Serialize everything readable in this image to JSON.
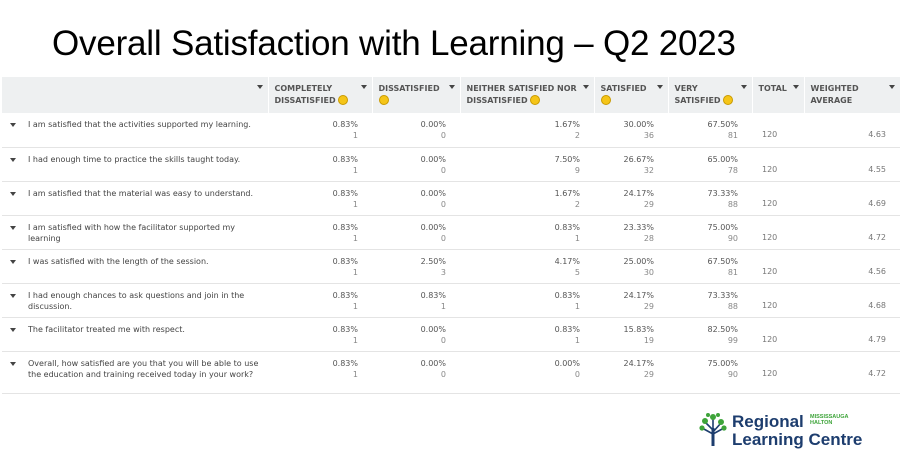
{
  "title": "Overall Satisfaction with Learning – Q2 2023",
  "headers": {
    "completely_dissatisfied": "COMPLETELY DISSATISFIED",
    "dissatisfied": "DISSATISFIED",
    "neither": "NEITHER SATISFIED NOR DISSATISFIED",
    "satisfied": "SATISFIED",
    "very_satisfied": "VERY SATISFIED",
    "total": "TOTAL",
    "weighted_average": "WEIGHTED AVERAGE"
  },
  "rows": [
    {
      "question": "I am satisfied that the activities supported my learning.",
      "c1": "0.83%",
      "n1": "1",
      "c2": "0.00%",
      "n2": "0",
      "c3": "1.67%",
      "n3": "2",
      "c4": "30.00%",
      "n4": "36",
      "c5": "67.50%",
      "n5": "81",
      "total": "120",
      "wavg": "4.63"
    },
    {
      "question": "I had enough time to practice the skills taught today.",
      "c1": "0.83%",
      "n1": "1",
      "c2": "0.00%",
      "n2": "0",
      "c3": "7.50%",
      "n3": "9",
      "c4": "26.67%",
      "n4": "32",
      "c5": "65.00%",
      "n5": "78",
      "total": "120",
      "wavg": "4.55"
    },
    {
      "question": "I am satisfied that the material was easy to understand.",
      "c1": "0.83%",
      "n1": "1",
      "c2": "0.00%",
      "n2": "0",
      "c3": "1.67%",
      "n3": "2",
      "c4": "24.17%",
      "n4": "29",
      "c5": "73.33%",
      "n5": "88",
      "total": "120",
      "wavg": "4.69"
    },
    {
      "question": "I am satisfied with how the facilitator supported my learning",
      "c1": "0.83%",
      "n1": "1",
      "c2": "0.00%",
      "n2": "0",
      "c3": "0.83%",
      "n3": "1",
      "c4": "23.33%",
      "n4": "28",
      "c5": "75.00%",
      "n5": "90",
      "total": "120",
      "wavg": "4.72"
    },
    {
      "question": "I was satisfied with the length of the session.",
      "c1": "0.83%",
      "n1": "1",
      "c2": "2.50%",
      "n2": "3",
      "c3": "4.17%",
      "n3": "5",
      "c4": "25.00%",
      "n4": "30",
      "c5": "67.50%",
      "n5": "81",
      "total": "120",
      "wavg": "4.56"
    },
    {
      "question": "I had enough chances to ask questions and join in the discussion.",
      "c1": "0.83%",
      "n1": "1",
      "c2": "0.83%",
      "n2": "1",
      "c3": "0.83%",
      "n3": "1",
      "c4": "24.17%",
      "n4": "29",
      "c5": "73.33%",
      "n5": "88",
      "total": "120",
      "wavg": "4.68"
    },
    {
      "question": "The facilitator treated me with respect.",
      "c1": "0.83%",
      "n1": "1",
      "c2": "0.00%",
      "n2": "0",
      "c3": "0.83%",
      "n3": "1",
      "c4": "15.83%",
      "n4": "19",
      "c5": "82.50%",
      "n5": "99",
      "total": "120",
      "wavg": "4.79"
    },
    {
      "question": "Overall, how satisfied are you that you will be able to use the education and training received today in your work?",
      "c1": "0.83%",
      "n1": "1",
      "c2": "0.00%",
      "n2": "0",
      "c3": "0.00%",
      "n3": "0",
      "c4": "24.17%",
      "n4": "29",
      "c5": "75.00%",
      "n5": "90",
      "total": "120",
      "wavg": "4.72"
    }
  ],
  "logo": {
    "line1": "Regional",
    "line2": "Learning Centre",
    "small1": "MISSISSAUGA",
    "small2": "HALTON",
    "brand_blue": "#1d3d6e",
    "brand_green": "#3ea43a"
  }
}
